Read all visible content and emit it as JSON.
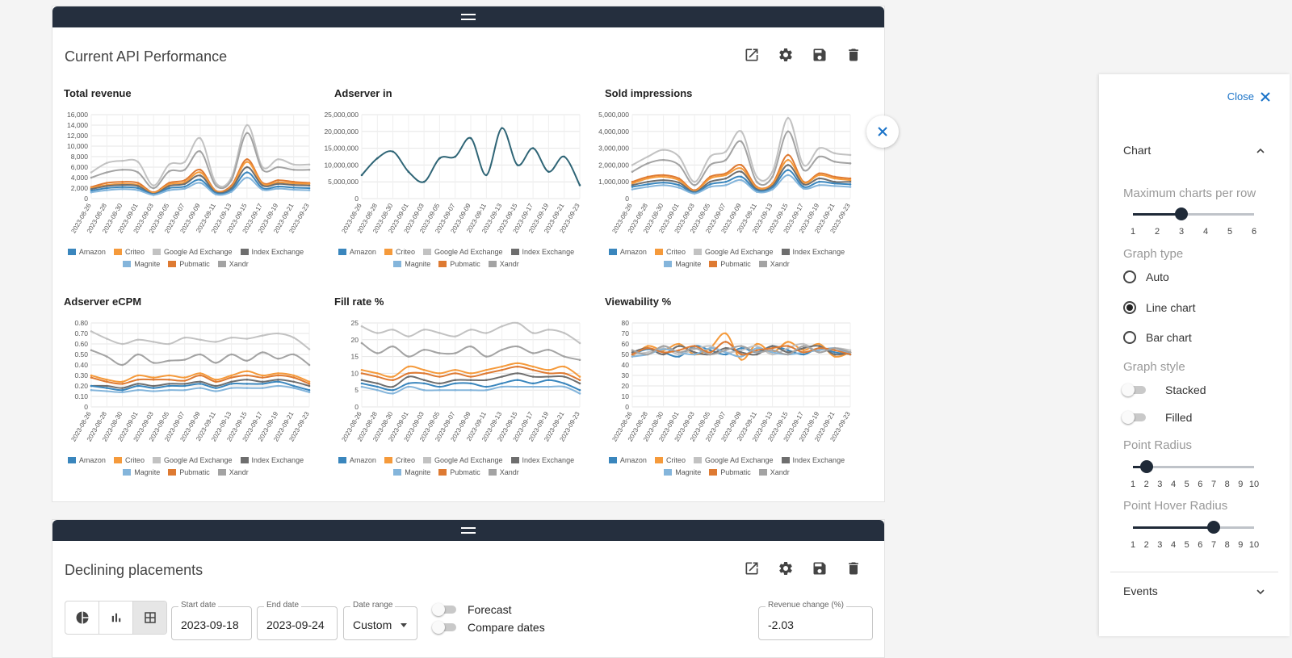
{
  "panels": [
    {
      "title": "Current API Performance"
    },
    {
      "title": "Declining placements"
    }
  ],
  "legend": {
    "row1": [
      "Amazon",
      "Criteo",
      "Google Ad Exchange",
      "Index Exchange"
    ],
    "row2": [
      "Magnite",
      "Pubmatic",
      "Xandr"
    ]
  },
  "colors": {
    "Amazon": "#3a86bd",
    "Criteo": "#f59a3b",
    "Google Ad Exchange": "#c2c2c2",
    "Index Exchange": "#6e6e6e",
    "Magnite": "#84b5db",
    "Pubmatic": "#de7a32",
    "Xandr": "#a3a3a3",
    "single": "#2f6576"
  },
  "dates": [
    "2023-08-26",
    "2023-08-28",
    "2023-08-30",
    "2023-09-01",
    "2023-09-03",
    "2023-09-05",
    "2023-09-07",
    "2023-09-09",
    "2023-09-11",
    "2023-09-13",
    "2023-09-15",
    "2023-09-17",
    "2023-09-19",
    "2023-09-21",
    "2023-09-23"
  ],
  "chart_data": [
    {
      "type": "line",
      "title": "Total revenue",
      "ylim": [
        0,
        16000
      ],
      "yticks": [
        "0",
        "2,000",
        "4,000",
        "6,000",
        "8,000",
        "10,000",
        "12,000",
        "14,000",
        "16,000"
      ],
      "series": [
        {
          "name": "Google Ad Exchange",
          "values": [
            5000,
            6800,
            7200,
            7000,
            2500,
            6500,
            7000,
            11500,
            3000,
            4000,
            14000,
            6000,
            7500,
            6500,
            6500
          ]
        },
        {
          "name": "Xandr",
          "values": [
            4000,
            5000,
            5500,
            5000,
            2000,
            5200,
            5500,
            9000,
            2500,
            3500,
            12500,
            5500,
            6000,
            5500,
            5500
          ]
        },
        {
          "name": "Pubmatic",
          "values": [
            2200,
            3000,
            3200,
            3000,
            1200,
            3000,
            3500,
            5500,
            1500,
            2500,
            7500,
            3000,
            3500,
            3200,
            3000
          ]
        },
        {
          "name": "Criteo",
          "values": [
            2000,
            2600,
            2800,
            2600,
            1100,
            2700,
            3100,
            5000,
            1400,
            2200,
            7000,
            2800,
            3100,
            2900,
            2800
          ]
        },
        {
          "name": "Index Exchange",
          "values": [
            1800,
            2400,
            2600,
            2400,
            900,
            2400,
            2800,
            4400,
            1200,
            2000,
            6000,
            2500,
            2800,
            2600,
            2500
          ]
        },
        {
          "name": "Amazon",
          "values": [
            1500,
            2000,
            2200,
            2000,
            800,
            2000,
            2300,
            3600,
            1000,
            1600,
            5000,
            2000,
            2300,
            2100,
            2000
          ]
        },
        {
          "name": "Magnite",
          "values": [
            1200,
            1600,
            1800,
            1600,
            700,
            1600,
            1900,
            3000,
            800,
            1300,
            4000,
            1700,
            1900,
            1700,
            1600
          ]
        }
      ]
    },
    {
      "type": "line",
      "title": "Adserver in",
      "ylim": [
        0,
        25000000
      ],
      "yticks": [
        "0",
        "5,000,000",
        "10,000,000",
        "15,000,000",
        "20,000,000",
        "25,000,000"
      ],
      "series": [
        {
          "name": "Adserver in",
          "values": [
            7000000,
            12000000,
            14000000,
            8000000,
            5000000,
            12000000,
            12500000,
            18000000,
            7000000,
            21000000,
            10000000,
            15000000,
            8000000,
            12500000,
            4000000
          ]
        }
      ]
    },
    {
      "type": "line",
      "title": "Sold impressions",
      "ylim": [
        0,
        5000000
      ],
      "yticks": [
        "0",
        "1,000,000",
        "2,000,000",
        "3,000,000",
        "4,000,000",
        "5,000,000"
      ],
      "series": [
        {
          "name": "Google Ad Exchange",
          "values": [
            2000000,
            2500000,
            2900000,
            2500000,
            1000000,
            2500000,
            2800000,
            4000000,
            1300000,
            1600000,
            4800000,
            2000000,
            3000000,
            2700000,
            2600000
          ]
        },
        {
          "name": "Xandr",
          "values": [
            1600000,
            2100000,
            2300000,
            2000000,
            800000,
            2000000,
            2300000,
            3400000,
            1000000,
            1300000,
            4000000,
            1700000,
            2500000,
            2200000,
            2100000
          ]
        },
        {
          "name": "Pubmatic",
          "values": [
            1000000,
            1300000,
            1400000,
            1200000,
            500000,
            1300000,
            1500000,
            2000000,
            700000,
            900000,
            2600000,
            1000000,
            1500000,
            1300000,
            1200000
          ]
        },
        {
          "name": "Criteo",
          "values": [
            900000,
            1200000,
            1300000,
            1100000,
            450000,
            1200000,
            1400000,
            1800000,
            650000,
            850000,
            2300000,
            950000,
            1400000,
            1200000,
            1100000
          ]
        },
        {
          "name": "Index Exchange",
          "values": [
            800000,
            1000000,
            1100000,
            950000,
            400000,
            1000000,
            1200000,
            1600000,
            550000,
            750000,
            2000000,
            850000,
            1200000,
            1000000,
            1000000
          ]
        },
        {
          "name": "Amazon",
          "values": [
            700000,
            850000,
            950000,
            800000,
            350000,
            850000,
            1000000,
            1300000,
            480000,
            650000,
            1700000,
            700000,
            1000000,
            900000,
            850000
          ]
        },
        {
          "name": "Magnite",
          "values": [
            550000,
            700000,
            800000,
            650000,
            300000,
            700000,
            800000,
            1100000,
            400000,
            550000,
            1400000,
            600000,
            800000,
            750000,
            700000
          ]
        }
      ]
    },
    {
      "type": "line",
      "title": "Adserver eCPM",
      "ylim": [
        0,
        0.8
      ],
      "yticks": [
        "0",
        "0.10",
        "0.20",
        "0.30",
        "0.40",
        "0.50",
        "0.60",
        "0.70",
        "0.80"
      ],
      "series": [
        {
          "name": "Google Ad Exchange",
          "values": [
            0.72,
            0.65,
            0.6,
            0.64,
            0.62,
            0.6,
            0.66,
            0.64,
            0.62,
            0.66,
            0.65,
            0.68,
            0.7,
            0.66,
            0.55
          ]
        },
        {
          "name": "Xandr",
          "values": [
            0.54,
            0.48,
            0.4,
            0.5,
            0.42,
            0.44,
            0.45,
            0.5,
            0.42,
            0.5,
            0.44,
            0.52,
            0.46,
            0.5,
            0.4
          ]
        },
        {
          "name": "Criteo",
          "values": [
            0.3,
            0.26,
            0.24,
            0.3,
            0.28,
            0.3,
            0.28,
            0.32,
            0.26,
            0.3,
            0.34,
            0.3,
            0.32,
            0.3,
            0.24
          ]
        },
        {
          "name": "Pubmatic",
          "values": [
            0.28,
            0.24,
            0.22,
            0.26,
            0.26,
            0.26,
            0.25,
            0.3,
            0.24,
            0.28,
            0.3,
            0.28,
            0.3,
            0.28,
            0.22
          ]
        },
        {
          "name": "Index Exchange",
          "values": [
            0.2,
            0.2,
            0.18,
            0.22,
            0.2,
            0.22,
            0.22,
            0.24,
            0.2,
            0.24,
            0.26,
            0.24,
            0.26,
            0.24,
            0.2
          ]
        },
        {
          "name": "Amazon",
          "values": [
            0.2,
            0.18,
            0.16,
            0.2,
            0.18,
            0.2,
            0.2,
            0.22,
            0.18,
            0.22,
            0.22,
            0.22,
            0.24,
            0.2,
            0.16
          ]
        },
        {
          "name": "Magnite",
          "values": [
            0.16,
            0.15,
            0.14,
            0.16,
            0.15,
            0.16,
            0.16,
            0.18,
            0.15,
            0.18,
            0.18,
            0.18,
            0.2,
            0.18,
            0.14
          ]
        }
      ]
    },
    {
      "type": "line",
      "title": "Fill rate %",
      "ylim": [
        0,
        25
      ],
      "yticks": [
        "0",
        "5",
        "10",
        "15",
        "20",
        "25"
      ],
      "series": [
        {
          "name": "Google Ad Exchange",
          "values": [
            24,
            22,
            23,
            21,
            23,
            22,
            21,
            23,
            22,
            24,
            25,
            22,
            23,
            22,
            19
          ]
        },
        {
          "name": "Xandr",
          "values": [
            19,
            16,
            18,
            15,
            17,
            16,
            16,
            18,
            15,
            17,
            18,
            16,
            17,
            15,
            14
          ]
        },
        {
          "name": "Criteo",
          "values": [
            11,
            10,
            9,
            12,
            11,
            10,
            11,
            10,
            11,
            12,
            13,
            12,
            11,
            12,
            9
          ]
        },
        {
          "name": "Pubmatic",
          "values": [
            10,
            9,
            8,
            10,
            10,
            9,
            10,
            9,
            10,
            11,
            12,
            11,
            10,
            10,
            8
          ]
        },
        {
          "name": "Index Exchange",
          "values": [
            8,
            7,
            6,
            9,
            8,
            7,
            8,
            8,
            8,
            9,
            10,
            9,
            9,
            9,
            7
          ]
        },
        {
          "name": "Amazon",
          "values": [
            7,
            6,
            5,
            7,
            7,
            6,
            7,
            7,
            6,
            7,
            8,
            7,
            8,
            7,
            5
          ]
        },
        {
          "name": "Magnite",
          "values": [
            6,
            5,
            4,
            6,
            5,
            5,
            5,
            5,
            5,
            6,
            6,
            6,
            6,
            6,
            4
          ]
        }
      ]
    },
    {
      "type": "line",
      "title": "Viewability %",
      "ylim": [
        0,
        80
      ],
      "yticks": [
        "0",
        "10",
        "20",
        "30",
        "40",
        "50",
        "60",
        "70",
        "80"
      ],
      "series": [
        {
          "name": "Amazon",
          "values": [
            50,
            55,
            52,
            48,
            58,
            54,
            50,
            56,
            52,
            58,
            54,
            50,
            56,
            52,
            50
          ]
        },
        {
          "name": "Criteo",
          "values": [
            48,
            58,
            54,
            60,
            50,
            56,
            70,
            45,
            60,
            52,
            62,
            54,
            60,
            48,
            52
          ]
        },
        {
          "name": "Google Ad Exchange",
          "values": [
            50,
            52,
            56,
            50,
            55,
            58,
            52,
            54,
            58,
            50,
            56,
            60,
            52,
            56,
            54
          ]
        },
        {
          "name": "Index Exchange",
          "values": [
            52,
            56,
            50,
            58,
            52,
            50,
            56,
            52,
            50,
            58,
            52,
            56,
            58,
            50,
            52
          ]
        },
        {
          "name": "Magnite",
          "values": [
            48,
            50,
            55,
            52,
            50,
            56,
            52,
            48,
            56,
            52,
            50,
            52,
            54,
            56,
            50
          ]
        },
        {
          "name": "Pubmatic",
          "values": [
            50,
            56,
            52,
            54,
            58,
            52,
            62,
            50,
            54,
            56,
            58,
            52,
            56,
            54,
            50
          ]
        },
        {
          "name": "Xandr",
          "values": [
            54,
            50,
            58,
            52,
            56,
            50,
            54,
            58,
            52,
            54,
            50,
            58,
            52,
            56,
            52
          ]
        }
      ]
    }
  ],
  "side": {
    "close_label": "Close",
    "chart_section": "Chart",
    "max_charts_label": "Maximum charts per row",
    "max_charts_ticks": [
      "1",
      "2",
      "3",
      "4",
      "5",
      "6"
    ],
    "max_charts_value": 3,
    "graph_type_label": "Graph type",
    "graph_types": [
      "Auto",
      "Line chart",
      "Bar chart"
    ],
    "graph_type_selected": "Line chart",
    "graph_style_label": "Graph style",
    "stacked_label": "Stacked",
    "filled_label": "Filled",
    "point_radius_label": "Point Radius",
    "point_radius_ticks": [
      "1",
      "2",
      "3",
      "4",
      "5",
      "6",
      "7",
      "8",
      "9",
      "10"
    ],
    "point_radius_value": 2,
    "point_hover_label": "Point Hover Radius",
    "point_hover_ticks": [
      "1",
      "2",
      "3",
      "4",
      "5",
      "6",
      "7",
      "8",
      "9",
      "10"
    ],
    "point_hover_value": 7,
    "events_label": "Events"
  },
  "controls": {
    "start_date_label": "Start date",
    "start_date": "2023-09-18",
    "end_date_label": "End date",
    "end_date": "2023-09-24",
    "date_range_label": "Date range",
    "date_range": "Custom",
    "forecast_label": "Forecast",
    "compare_label": "Compare dates",
    "revenue_change_label": "Revenue change (%)",
    "revenue_change": "-2.03"
  }
}
